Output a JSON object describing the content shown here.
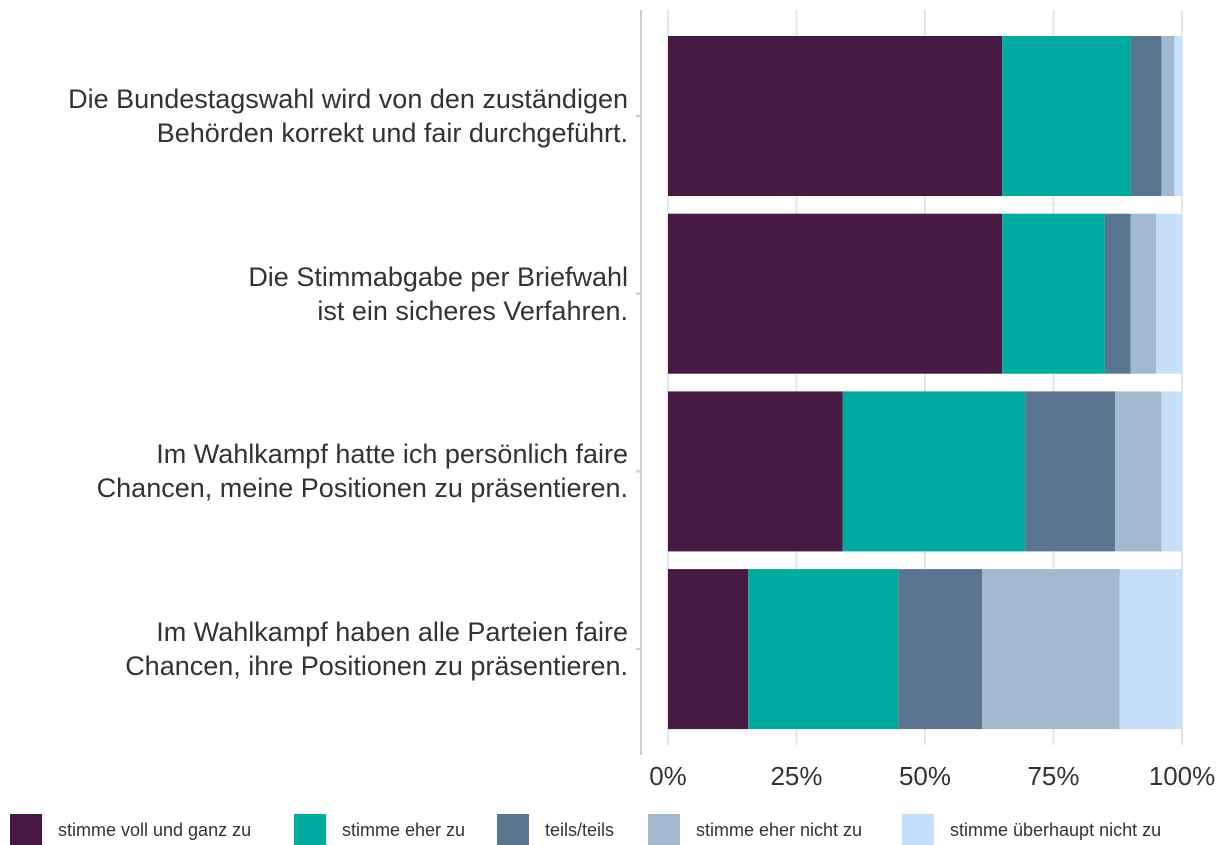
{
  "chart_data": {
    "type": "stacked-barh",
    "categories": [
      "Die Bundestagswahl wird von den zuständigen\nBehörden korrekt und fair durchgeführt.",
      "Die Stimmabgabe per Briefwahl\nist ein sicheres Verfahren.",
      "Im Wahlkampf hatte ich persönlich faire\nChancen, meine Positionen zu präsentieren.",
      "Im Wahlkampf haben alle Parteien faire\nChancen, ihre Positionen zu präsentieren."
    ],
    "series": [
      {
        "name": "stimme voll und ganz zu",
        "color": "#461a43",
        "values": [
          65,
          65,
          34,
          15.6
        ]
      },
      {
        "name": "stimme eher zu",
        "color": "#00ab9f",
        "values": [
          25,
          20,
          35.5,
          29.2
        ]
      },
      {
        "name": "teils/teils",
        "color": "#5a7590",
        "values": [
          6,
          5,
          17.5,
          16.3
        ]
      },
      {
        "name": "stimme eher nicht zu",
        "color": "#a2b8cf",
        "values": [
          2.5,
          5,
          9,
          26.8
        ]
      },
      {
        "name": "stimme überhaupt nicht zu",
        "color": "#c6e0fb",
        "values": [
          1.5,
          5,
          4,
          12.1
        ]
      }
    ],
    "xlim": [
      0,
      100
    ],
    "xticks": [
      {
        "value": 0,
        "label": "0%"
      },
      {
        "value": 25,
        "label": "25%"
      },
      {
        "value": 50,
        "label": "50%"
      },
      {
        "value": 75,
        "label": "75%"
      },
      {
        "value": 100,
        "label": "100%"
      }
    ],
    "grid": true,
    "legend": "bottom"
  }
}
